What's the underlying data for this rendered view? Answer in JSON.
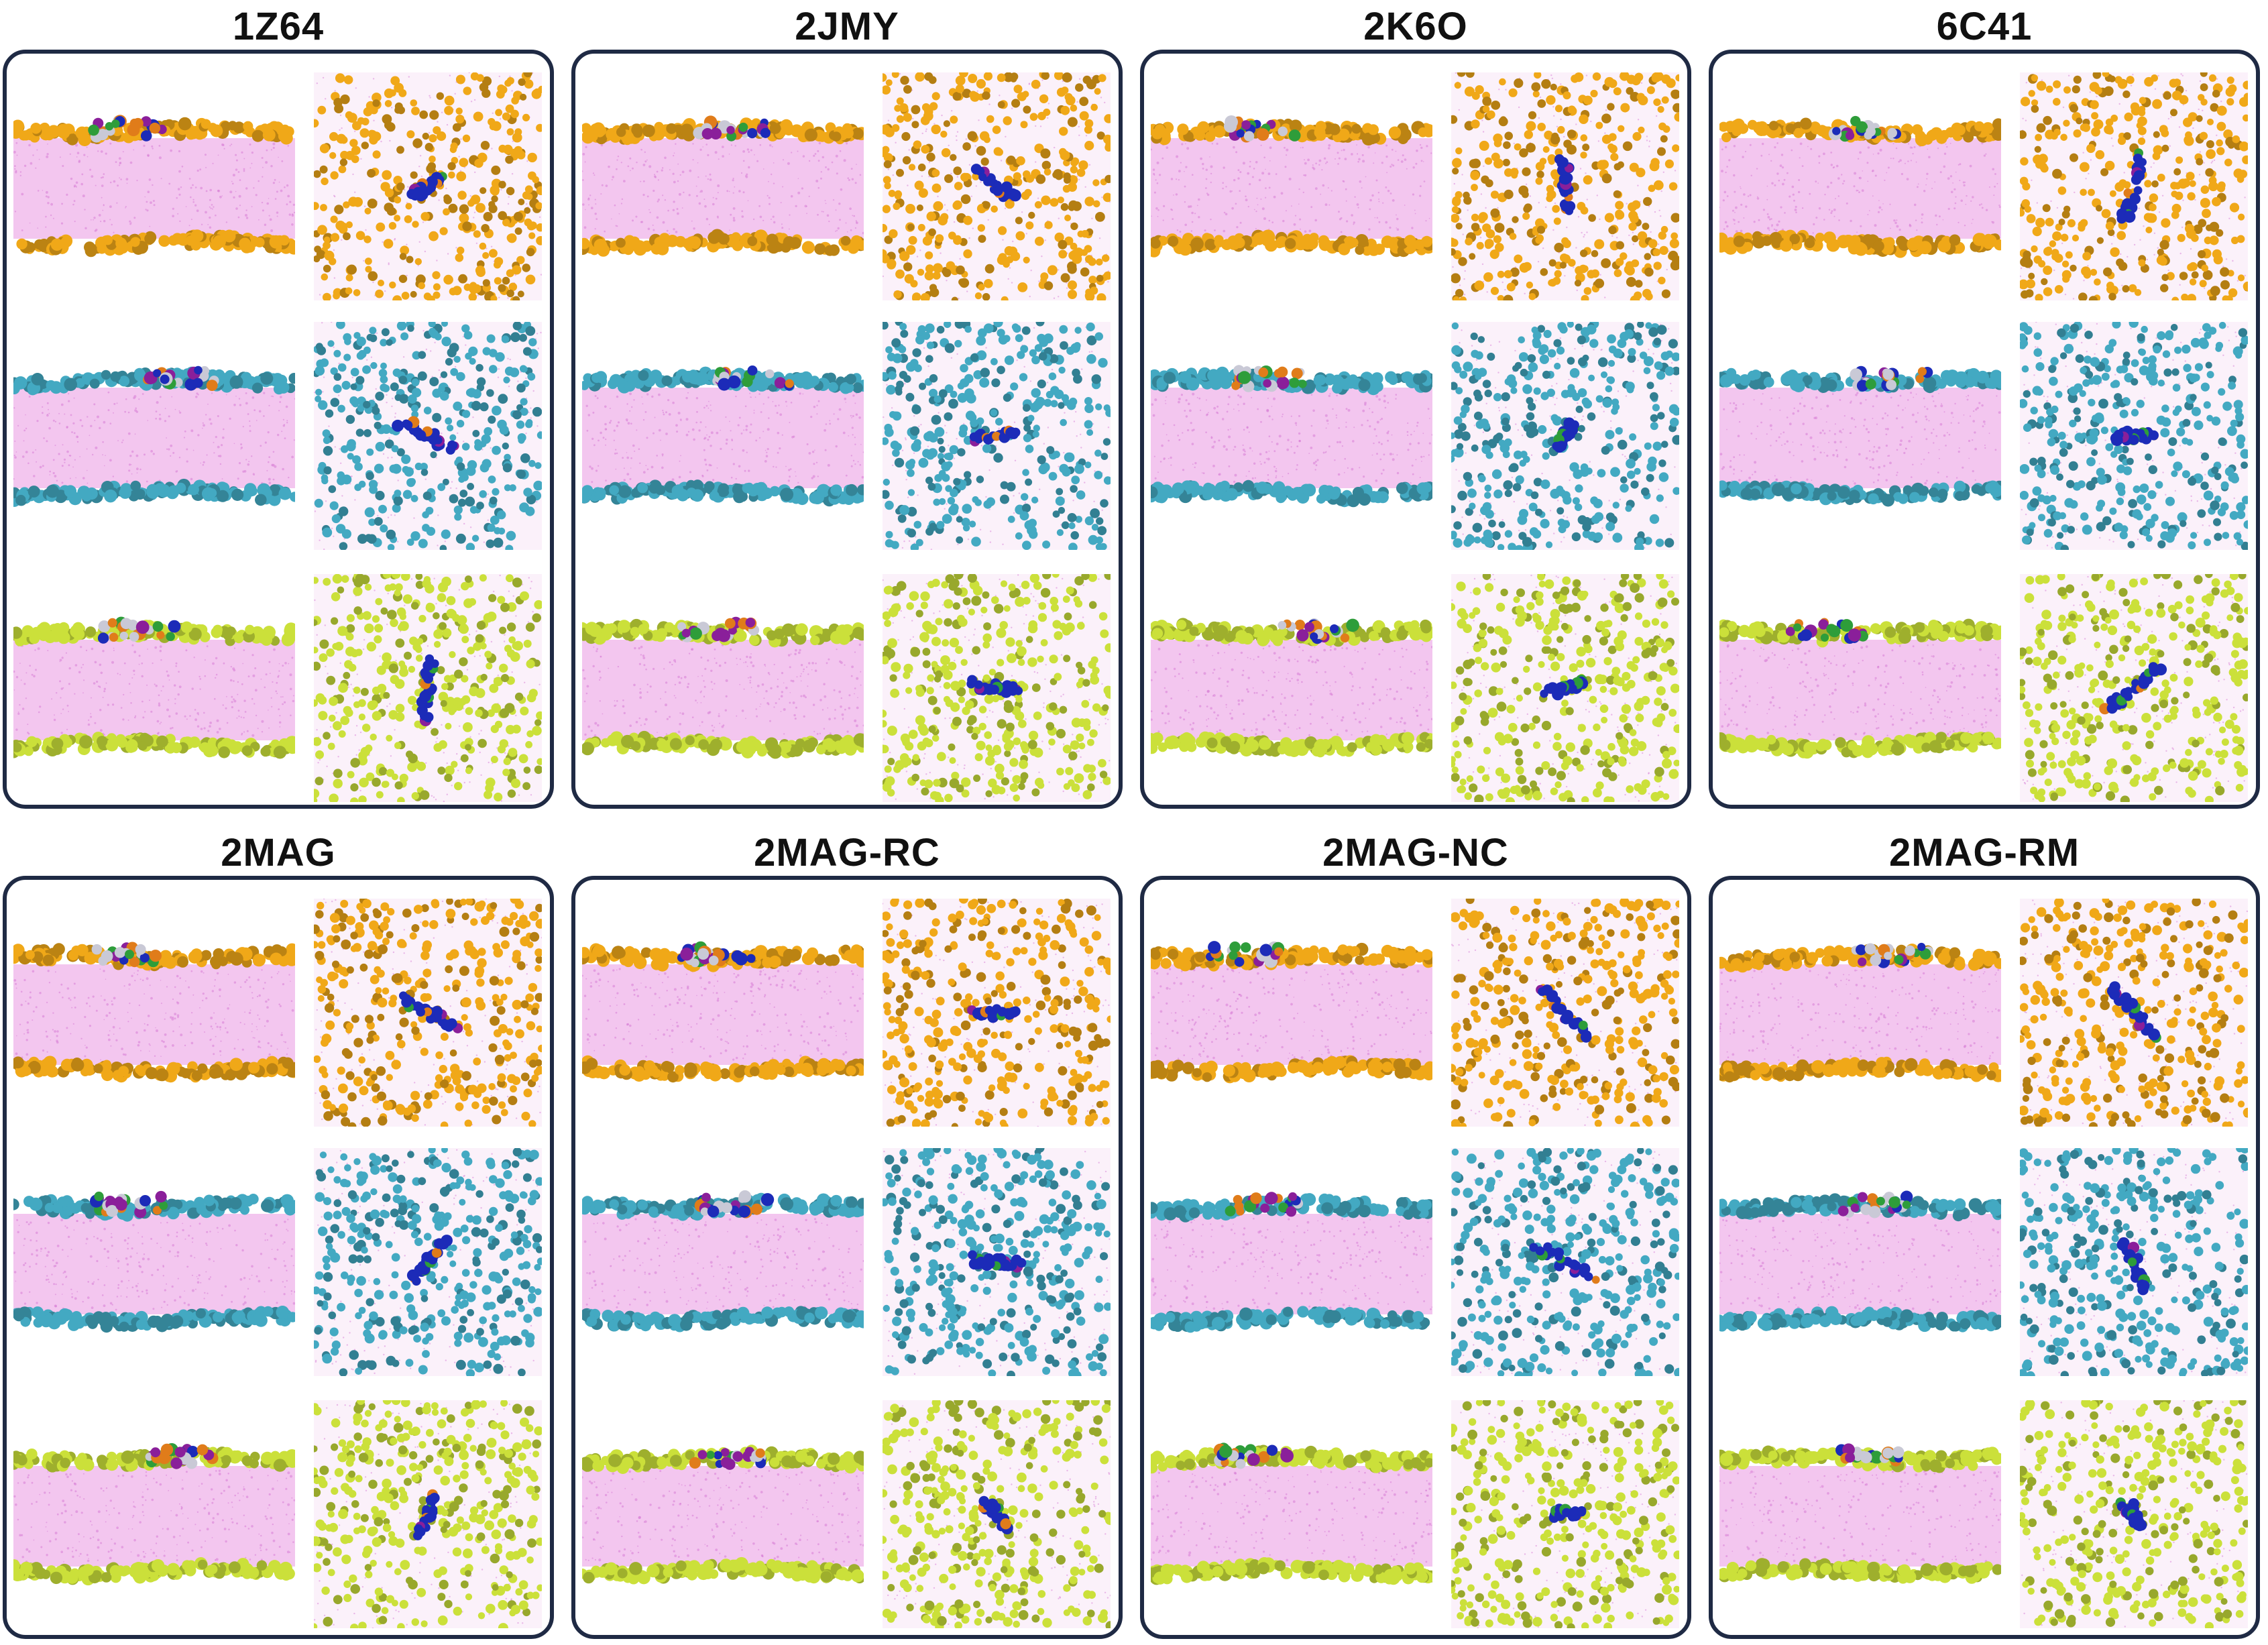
{
  "colors": {
    "frame": "#1f2a44",
    "lipid_core": "#f3c6ef",
    "lipid_core_dots": "#d77ed6",
    "headgroups": [
      "#f0a818",
      "#43a9c2",
      "#cbe03a"
    ],
    "peptide": [
      "#1c2bb8",
      "#8a1f9a",
      "#2e9d3a",
      "#e07c1a",
      "#c9c9d6"
    ]
  },
  "panels": [
    {
      "title": "1Z64"
    },
    {
      "title": "2JMY"
    },
    {
      "title": "2K6O"
    },
    {
      "title": "6C41"
    },
    {
      "title": "2MAG"
    },
    {
      "title": "2MAG-RC"
    },
    {
      "title": "2MAG-NC"
    },
    {
      "title": "2MAG-RM"
    }
  ]
}
